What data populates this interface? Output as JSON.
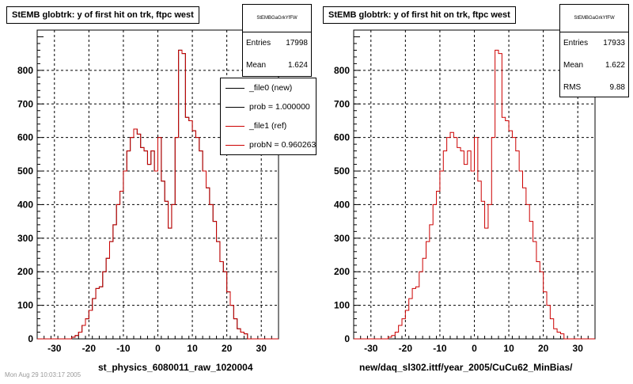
{
  "chart_data": [
    {
      "type": "histogram",
      "title": "StEMB globtrk: y of first hit on trk, ftpc west",
      "xlabel": "st_physics_6080011_raw_1020004",
      "ylabel": "",
      "xlim": [
        -35,
        35
      ],
      "ylim": [
        0,
        920
      ],
      "xticks": [
        -30,
        -20,
        -10,
        0,
        10,
        20,
        30
      ],
      "yticks": [
        0,
        100,
        200,
        300,
        400,
        500,
        600,
        700,
        800
      ],
      "grid": true,
      "bin_width": 1,
      "x_start": -25,
      "series": [
        {
          "name": "_file0 (new)",
          "color": "#000000",
          "values": [
            5,
            10,
            20,
            40,
            60,
            85,
            120,
            150,
            155,
            200,
            240,
            290,
            340,
            400,
            440,
            500,
            560,
            600,
            625,
            610,
            570,
            560,
            520,
            560,
            500,
            600,
            470,
            410,
            330,
            400,
            600,
            860,
            850,
            660,
            650,
            620,
            600,
            560,
            500,
            450,
            400,
            350,
            290,
            230,
            200,
            140,
            100,
            60,
            30,
            20,
            15
          ]
        },
        {
          "name": "_file1 (ref)",
          "color": "#cc0000",
          "values": [
            5,
            10,
            20,
            40,
            60,
            85,
            120,
            150,
            155,
            200,
            240,
            290,
            340,
            400,
            440,
            500,
            560,
            600,
            625,
            610,
            570,
            560,
            520,
            560,
            500,
            600,
            470,
            410,
            330,
            400,
            600,
            860,
            850,
            660,
            650,
            620,
            600,
            560,
            500,
            450,
            400,
            350,
            290,
            230,
            200,
            140,
            100,
            60,
            30,
            20,
            15
          ]
        }
      ],
      "stats": {
        "header": "StEMBGaGrkYfFW",
        "entries_label": "Entries",
        "entries": "17998",
        "mean_label": "Mean",
        "mean": "1.624"
      },
      "legend": {
        "position": "top-right",
        "entries": [
          "_file0 (new)",
          "prob = 1.000000",
          "_file1 (ref)",
          "probN = 0.960263"
        ]
      }
    },
    {
      "type": "histogram",
      "title": "StEMB globtrk: y of first hit on trk, ftpc west",
      "xlabel": "new/daq_sl302.ittf/year_2005/CuCu62_MinBias/",
      "ylabel": "",
      "xlim": [
        -35,
        35
      ],
      "ylim": [
        0,
        920
      ],
      "xticks": [
        -30,
        -20,
        -10,
        0,
        10,
        20,
        30
      ],
      "yticks": [
        0,
        100,
        200,
        300,
        400,
        500,
        600,
        700,
        800
      ],
      "grid": true,
      "bin_width": 1,
      "x_start": -25,
      "series": [
        {
          "name": "",
          "color": "#cc0000",
          "values": [
            5,
            10,
            20,
            40,
            60,
            85,
            120,
            150,
            155,
            200,
            240,
            290,
            340,
            400,
            440,
            500,
            560,
            600,
            615,
            600,
            570,
            560,
            520,
            560,
            500,
            600,
            470,
            410,
            330,
            400,
            600,
            860,
            850,
            660,
            650,
            620,
            600,
            560,
            500,
            450,
            400,
            350,
            290,
            230,
            200,
            140,
            100,
            60,
            30,
            20,
            15
          ]
        }
      ],
      "stats": {
        "header": "StEMBGaGrkYfFW",
        "entries_label": "Entries",
        "entries": "17933",
        "mean_label": "Mean",
        "mean": "1.622",
        "rms_label": "RMS",
        "rms": "9.88"
      }
    }
  ],
  "footer": "Mon Aug 29 10:03:17 2005"
}
